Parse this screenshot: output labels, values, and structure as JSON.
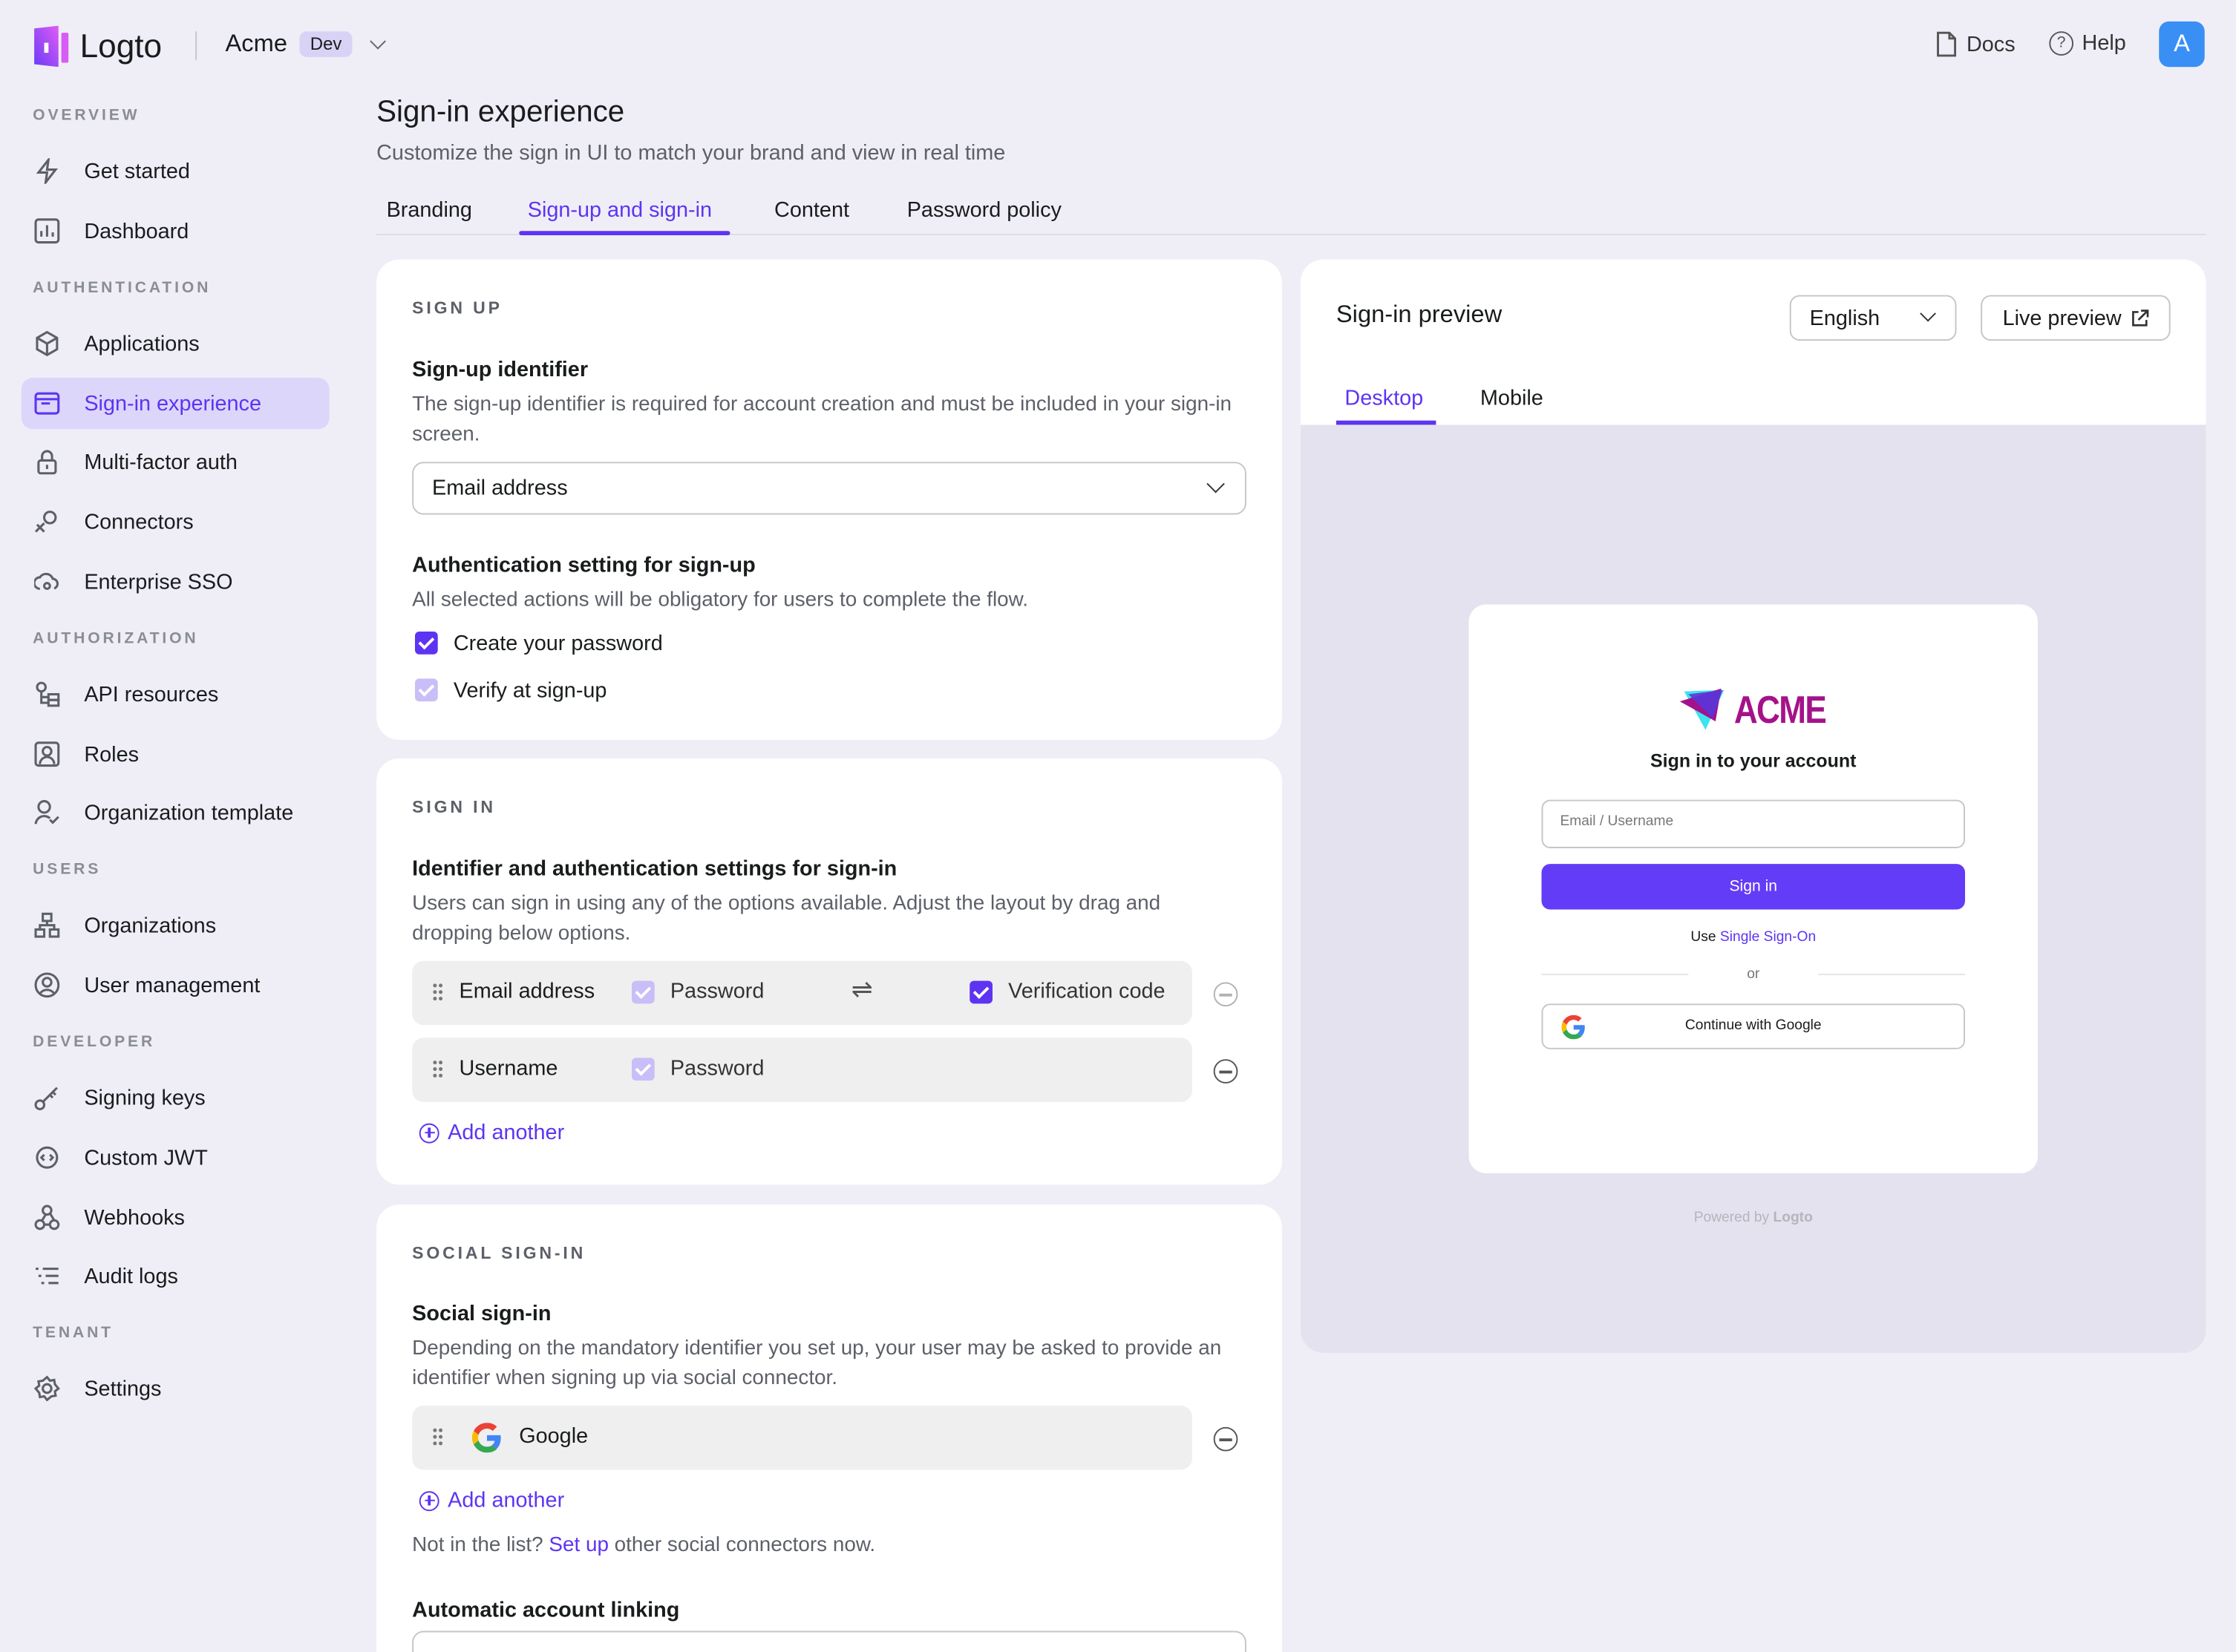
{
  "header": {
    "brand": "Logto",
    "tenant": "Acme",
    "tenant_badge": "Dev",
    "docs": "Docs",
    "help": "Help",
    "avatar": "A"
  },
  "sidebar": {
    "sections": [
      "OVERVIEW",
      "AUTHENTICATION",
      "AUTHORIZATION",
      "USERS",
      "DEVELOPER",
      "TENANT"
    ],
    "items": [
      {
        "label": "Get started"
      },
      {
        "label": "Dashboard"
      },
      {
        "label": "Applications"
      },
      {
        "label": "Sign-in experience",
        "active": true
      },
      {
        "label": "Multi-factor auth"
      },
      {
        "label": "Connectors"
      },
      {
        "label": "Enterprise SSO"
      },
      {
        "label": "API resources"
      },
      {
        "label": "Roles"
      },
      {
        "label": "Organization template"
      },
      {
        "label": "Organizations"
      },
      {
        "label": "User management"
      },
      {
        "label": "Signing keys"
      },
      {
        "label": "Custom JWT"
      },
      {
        "label": "Webhooks"
      },
      {
        "label": "Audit logs"
      },
      {
        "label": "Settings"
      }
    ]
  },
  "page": {
    "title": "Sign-in experience",
    "subtitle": "Customize the sign in UI to match your brand and view in real time",
    "tabs": [
      "Branding",
      "Sign-up and sign-in",
      "Content",
      "Password policy"
    ],
    "active_tab": "Sign-up and sign-in"
  },
  "signup": {
    "caption": "SIGN UP",
    "identifier_title": "Sign-up identifier",
    "identifier_desc": "The sign-up identifier is required for account creation and must be included in your sign-in screen.",
    "identifier_value": "Email address",
    "auth_title": "Authentication setting for sign-up",
    "auth_desc": "All selected actions will be obligatory for users to complete the flow.",
    "opt_password": "Create your password",
    "opt_verify": "Verify at sign-up"
  },
  "signin": {
    "caption": "SIGN IN",
    "title": "Identifier and authentication settings for sign-in",
    "desc": "Users can sign in using any of the options available. Adjust the layout by drag and dropping below options.",
    "rows": [
      {
        "identifier": "Email address",
        "password": "Password",
        "verification": "Verification code"
      },
      {
        "identifier": "Username",
        "password": "Password"
      }
    ],
    "add": "Add another"
  },
  "social": {
    "caption": "SOCIAL SIGN-IN",
    "title": "Social sign-in",
    "desc": "Depending on the mandatory identifier you set up, your user may be asked to provide an identifier when signing up via social connector.",
    "connector": "Google",
    "add": "Add another",
    "note_pre": "Not in the list?",
    "note_link": "Set up",
    "note_post": "other social connectors now.",
    "linking_title": "Automatic account linking"
  },
  "preview": {
    "title": "Sign-in preview",
    "language": "English",
    "live": "Live preview",
    "tabs": [
      "Desktop",
      "Mobile"
    ],
    "brand": "ACME",
    "heading": "Sign in to your account",
    "input_placeholder": "Email / Username",
    "signin_button": "Sign in",
    "sso_pre": "Use",
    "sso_link": "Single Sign-On",
    "or": "or",
    "google": "Continue with Google",
    "powered": "Powered by",
    "powered_brand": "Logto"
  },
  "colors": {
    "accent": "#5d34f2",
    "background": "#efeef7",
    "brand_acme": "#a4128a"
  }
}
